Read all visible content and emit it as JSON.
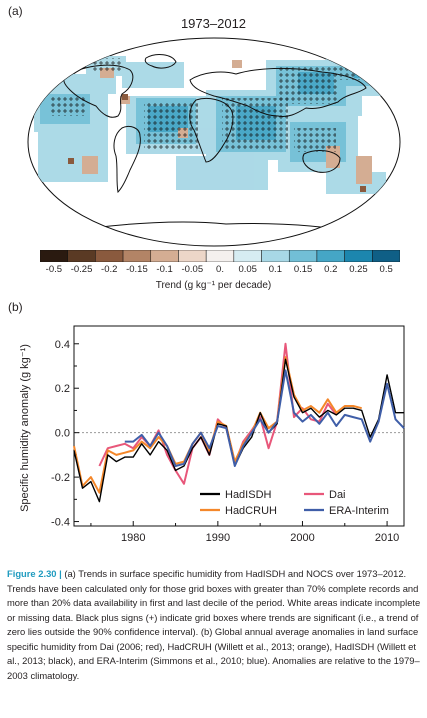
{
  "panel_a": {
    "label": "(a)",
    "title": "1973–2012",
    "colorbar": {
      "ticks": [
        "-0.5",
        "-0.25",
        "-0.2",
        "-0.15",
        "-0.1",
        "-0.05",
        "0.",
        "0.05",
        "0.1",
        "0.15",
        "0.2",
        "0.25",
        "0.5"
      ],
      "colors": [
        "#2a1a10",
        "#5a3a24",
        "#8a5a3e",
        "#b38466",
        "#d4ad93",
        "#ecd6c8",
        "#f4f0ee",
        "#d6ecf2",
        "#a8d8e6",
        "#72bfd6",
        "#45a6c6",
        "#1c86ae",
        "#0f5f86"
      ],
      "label_text": "Trend (g kg⁻¹ per decade)"
    }
  },
  "panel_b": {
    "label": "(b)"
  },
  "chart_data": {
    "type": "line",
    "title": "",
    "xlabel": "",
    "ylabel": "Specific humidity anomaly (g kg⁻¹)",
    "xlim": [
      1973,
      2012
    ],
    "ylim": [
      -0.42,
      0.48
    ],
    "yticks": [
      -0.4,
      -0.2,
      0.0,
      0.2,
      0.4
    ],
    "ytick_labels": [
      "-0.4",
      "-0.2",
      "0.0",
      "0.2",
      "0.4"
    ],
    "xticks": [
      1980,
      1990,
      2000,
      2010
    ],
    "xtick_labels": [
      "1980",
      "1990",
      "2000",
      "2010"
    ],
    "zero_line": "dotted",
    "legend_position": "bottom-right",
    "series": [
      {
        "name": "HadISDH",
        "color": "#000000",
        "x": [
          1973,
          1974,
          1975,
          1976,
          1977,
          1978,
          1979,
          1980,
          1981,
          1982,
          1983,
          1984,
          1985,
          1986,
          1987,
          1988,
          1989,
          1990,
          1991,
          1992,
          1993,
          1994,
          1995,
          1996,
          1997,
          1998,
          1999,
          2000,
          2001,
          2002,
          2003,
          2004,
          2005,
          2006,
          2007,
          2008,
          2009,
          2010,
          2011,
          2012
        ],
        "y": [
          -0.08,
          -0.25,
          -0.22,
          -0.31,
          -0.1,
          -0.13,
          -0.11,
          -0.11,
          -0.05,
          -0.1,
          -0.04,
          -0.08,
          -0.17,
          -0.15,
          -0.07,
          -0.02,
          -0.1,
          0.04,
          0.03,
          -0.15,
          -0.07,
          -0.02,
          0.09,
          0.0,
          0.04,
          0.33,
          0.16,
          0.09,
          0.11,
          0.07,
          0.1,
          0.08,
          0.11,
          0.11,
          0.1,
          -0.02,
          0.06,
          0.26,
          0.09,
          0.09
        ]
      },
      {
        "name": "Dai",
        "color": "#e8577a",
        "x": [
          1976,
          1977,
          1978,
          1979,
          1980,
          1981,
          1982,
          1983,
          1984,
          1985,
          1986,
          1987,
          1988,
          1989,
          1990,
          1991,
          1992,
          1993,
          1994,
          1995,
          1996,
          1997,
          1998,
          1999,
          2000,
          2001,
          2002,
          2003,
          2004
        ],
        "y": [
          -0.15,
          -0.07,
          -0.06,
          -0.05,
          -0.07,
          -0.02,
          -0.06,
          0.01,
          -0.1,
          -0.17,
          -0.23,
          -0.07,
          -0.02,
          -0.1,
          0.06,
          0.02,
          -0.14,
          -0.04,
          0.01,
          0.07,
          -0.07,
          0.05,
          0.4,
          0.07,
          0.11,
          0.06,
          0.05,
          0.13,
          0.08
        ]
      },
      {
        "name": "HadCRUH",
        "color": "#f4872a",
        "x": [
          1973,
          1974,
          1975,
          1976,
          1977,
          1978,
          1979,
          1980,
          1981,
          1982,
          1983,
          1984,
          1985,
          1986,
          1987,
          1988,
          1989,
          1990,
          1991,
          1992,
          1993,
          1994,
          1995,
          1996,
          1997,
          1998,
          1999,
          2000,
          2001,
          2002,
          2003,
          2004,
          2005,
          2006,
          2007
        ],
        "y": [
          -0.06,
          -0.24,
          -0.2,
          -0.27,
          -0.08,
          -0.1,
          -0.09,
          -0.08,
          -0.04,
          -0.07,
          -0.02,
          -0.06,
          -0.14,
          -0.13,
          -0.05,
          0.0,
          -0.08,
          0.05,
          0.03,
          -0.13,
          -0.05,
          0.0,
          0.09,
          0.02,
          0.05,
          0.34,
          0.17,
          0.1,
          0.12,
          0.09,
          0.15,
          0.09,
          0.12,
          0.12,
          0.11
        ]
      },
      {
        "name": "ERA-Interim",
        "color": "#3f5ea8",
        "x": [
          1979,
          1980,
          1981,
          1982,
          1983,
          1984,
          1985,
          1986,
          1987,
          1988,
          1989,
          1990,
          1991,
          1992,
          1993,
          1994,
          1995,
          1996,
          1997,
          1998,
          1999,
          2000,
          2001,
          2002,
          2003,
          2004,
          2005,
          2006,
          2007,
          2008,
          2009,
          2010,
          2011,
          2012
        ],
        "y": [
          -0.04,
          -0.04,
          -0.01,
          -0.06,
          0.0,
          -0.06,
          -0.15,
          -0.14,
          -0.05,
          0.0,
          -0.07,
          0.03,
          0.02,
          -0.15,
          -0.06,
          0.0,
          0.06,
          0.0,
          0.05,
          0.28,
          0.09,
          0.05,
          0.08,
          0.04,
          0.09,
          0.03,
          0.08,
          0.07,
          0.06,
          -0.04,
          0.05,
          0.22,
          0.06,
          0.02
        ]
      }
    ]
  },
  "caption": {
    "figure_label": "Figure 2.30 |",
    "text": "(a) Trends in surface specific humidity from HadISDH and NOCS over 1973–2012. Trends have been calculated only for those grid boxes with greater than 70% complete records and more than 20% data availability in first and last decile of the period. White areas indicate incomplete or missing data. Black plus signs (+) indicate grid boxes where trends are significant (i.e., a trend of zero lies outside the 90% confidence interval). (b) Global annual average anomalies in land surface specific humidity from Dai (2006; red), HadCRUH (Willett et al., 2013; orange), HadISDH (Willett et al., 2013; black), and ERA-Interim (Simmons et al., 2010; blue). Anomalies are relative to the 1979–2003 climatology."
  }
}
